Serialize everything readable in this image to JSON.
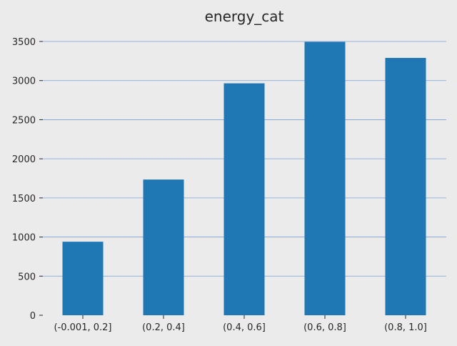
{
  "chart_data": {
    "type": "bar",
    "title": "energy_cat",
    "xlabel": "",
    "ylabel": "",
    "categories": [
      "(-0.001, 0.2]",
      "(0.2, 0.4]",
      "(0.4, 0.6]",
      "(0.6, 0.8]",
      "(0.8, 1.0]"
    ],
    "values": [
      940,
      1735,
      2965,
      3495,
      3290
    ],
    "ylim": [
      0,
      3650
    ],
    "yticks": [
      0,
      500,
      1000,
      1500,
      2000,
      2500,
      3000,
      3500
    ],
    "grid": "y",
    "legend": "none",
    "colors": {
      "background": "#ebebeb",
      "bar": "#1f77b4",
      "grid": "#7ea1d6",
      "text": "#262626"
    }
  }
}
